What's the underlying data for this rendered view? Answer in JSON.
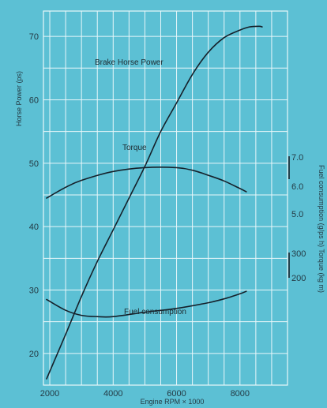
{
  "chart_data": {
    "type": "line",
    "xlabel": "Engine RPM × 1000",
    "ylabel_left": "Horse Power (ps)",
    "ylabel_right": "Fuel consumption (g/ps h) Torque (kg m)",
    "x_ticks": [
      2000,
      4000,
      6000,
      8000
    ],
    "xlim": [
      1800,
      9500
    ],
    "left_axis": {
      "ylim": [
        15,
        74
      ],
      "ticks": [
        20,
        30,
        40,
        50,
        60,
        70
      ]
    },
    "torque_axis": {
      "ticks": [
        "7.0",
        "6.0",
        "5.0"
      ]
    },
    "fuel_axis": {
      "ticks": [
        "300",
        "200"
      ]
    },
    "series": [
      {
        "name": "Brake Horse Power",
        "axis": "left",
        "x": [
          1900,
          2500,
          3000,
          3500,
          4000,
          4500,
          5000,
          5500,
          6000,
          6500,
          7000,
          7500,
          8000,
          8300,
          8600,
          8700
        ],
        "y": [
          16,
          23,
          29,
          34.5,
          39.5,
          44.5,
          49.5,
          55,
          59.5,
          64,
          67.5,
          69.8,
          71,
          71.5,
          71.6,
          71.5
        ]
      },
      {
        "name": "Torque",
        "axis": "left",
        "x": [
          1900,
          2500,
          3000,
          4000,
          5000,
          6000,
          6500,
          7000,
          7500,
          8000,
          8200
        ],
        "y": [
          44.5,
          46.2,
          47.3,
          48.7,
          49.3,
          49.3,
          48.9,
          48.1,
          47.2,
          46,
          45.5
        ]
      },
      {
        "name": "Fuel consumption",
        "axis": "left",
        "x": [
          1900,
          2500,
          3000,
          3500,
          4000,
          5000,
          6000,
          7000,
          7500,
          8000,
          8200
        ],
        "y": [
          28.5,
          26.8,
          26,
          25.8,
          25.8,
          26.5,
          27.1,
          28,
          28.6,
          29.4,
          29.8
        ]
      }
    ]
  }
}
